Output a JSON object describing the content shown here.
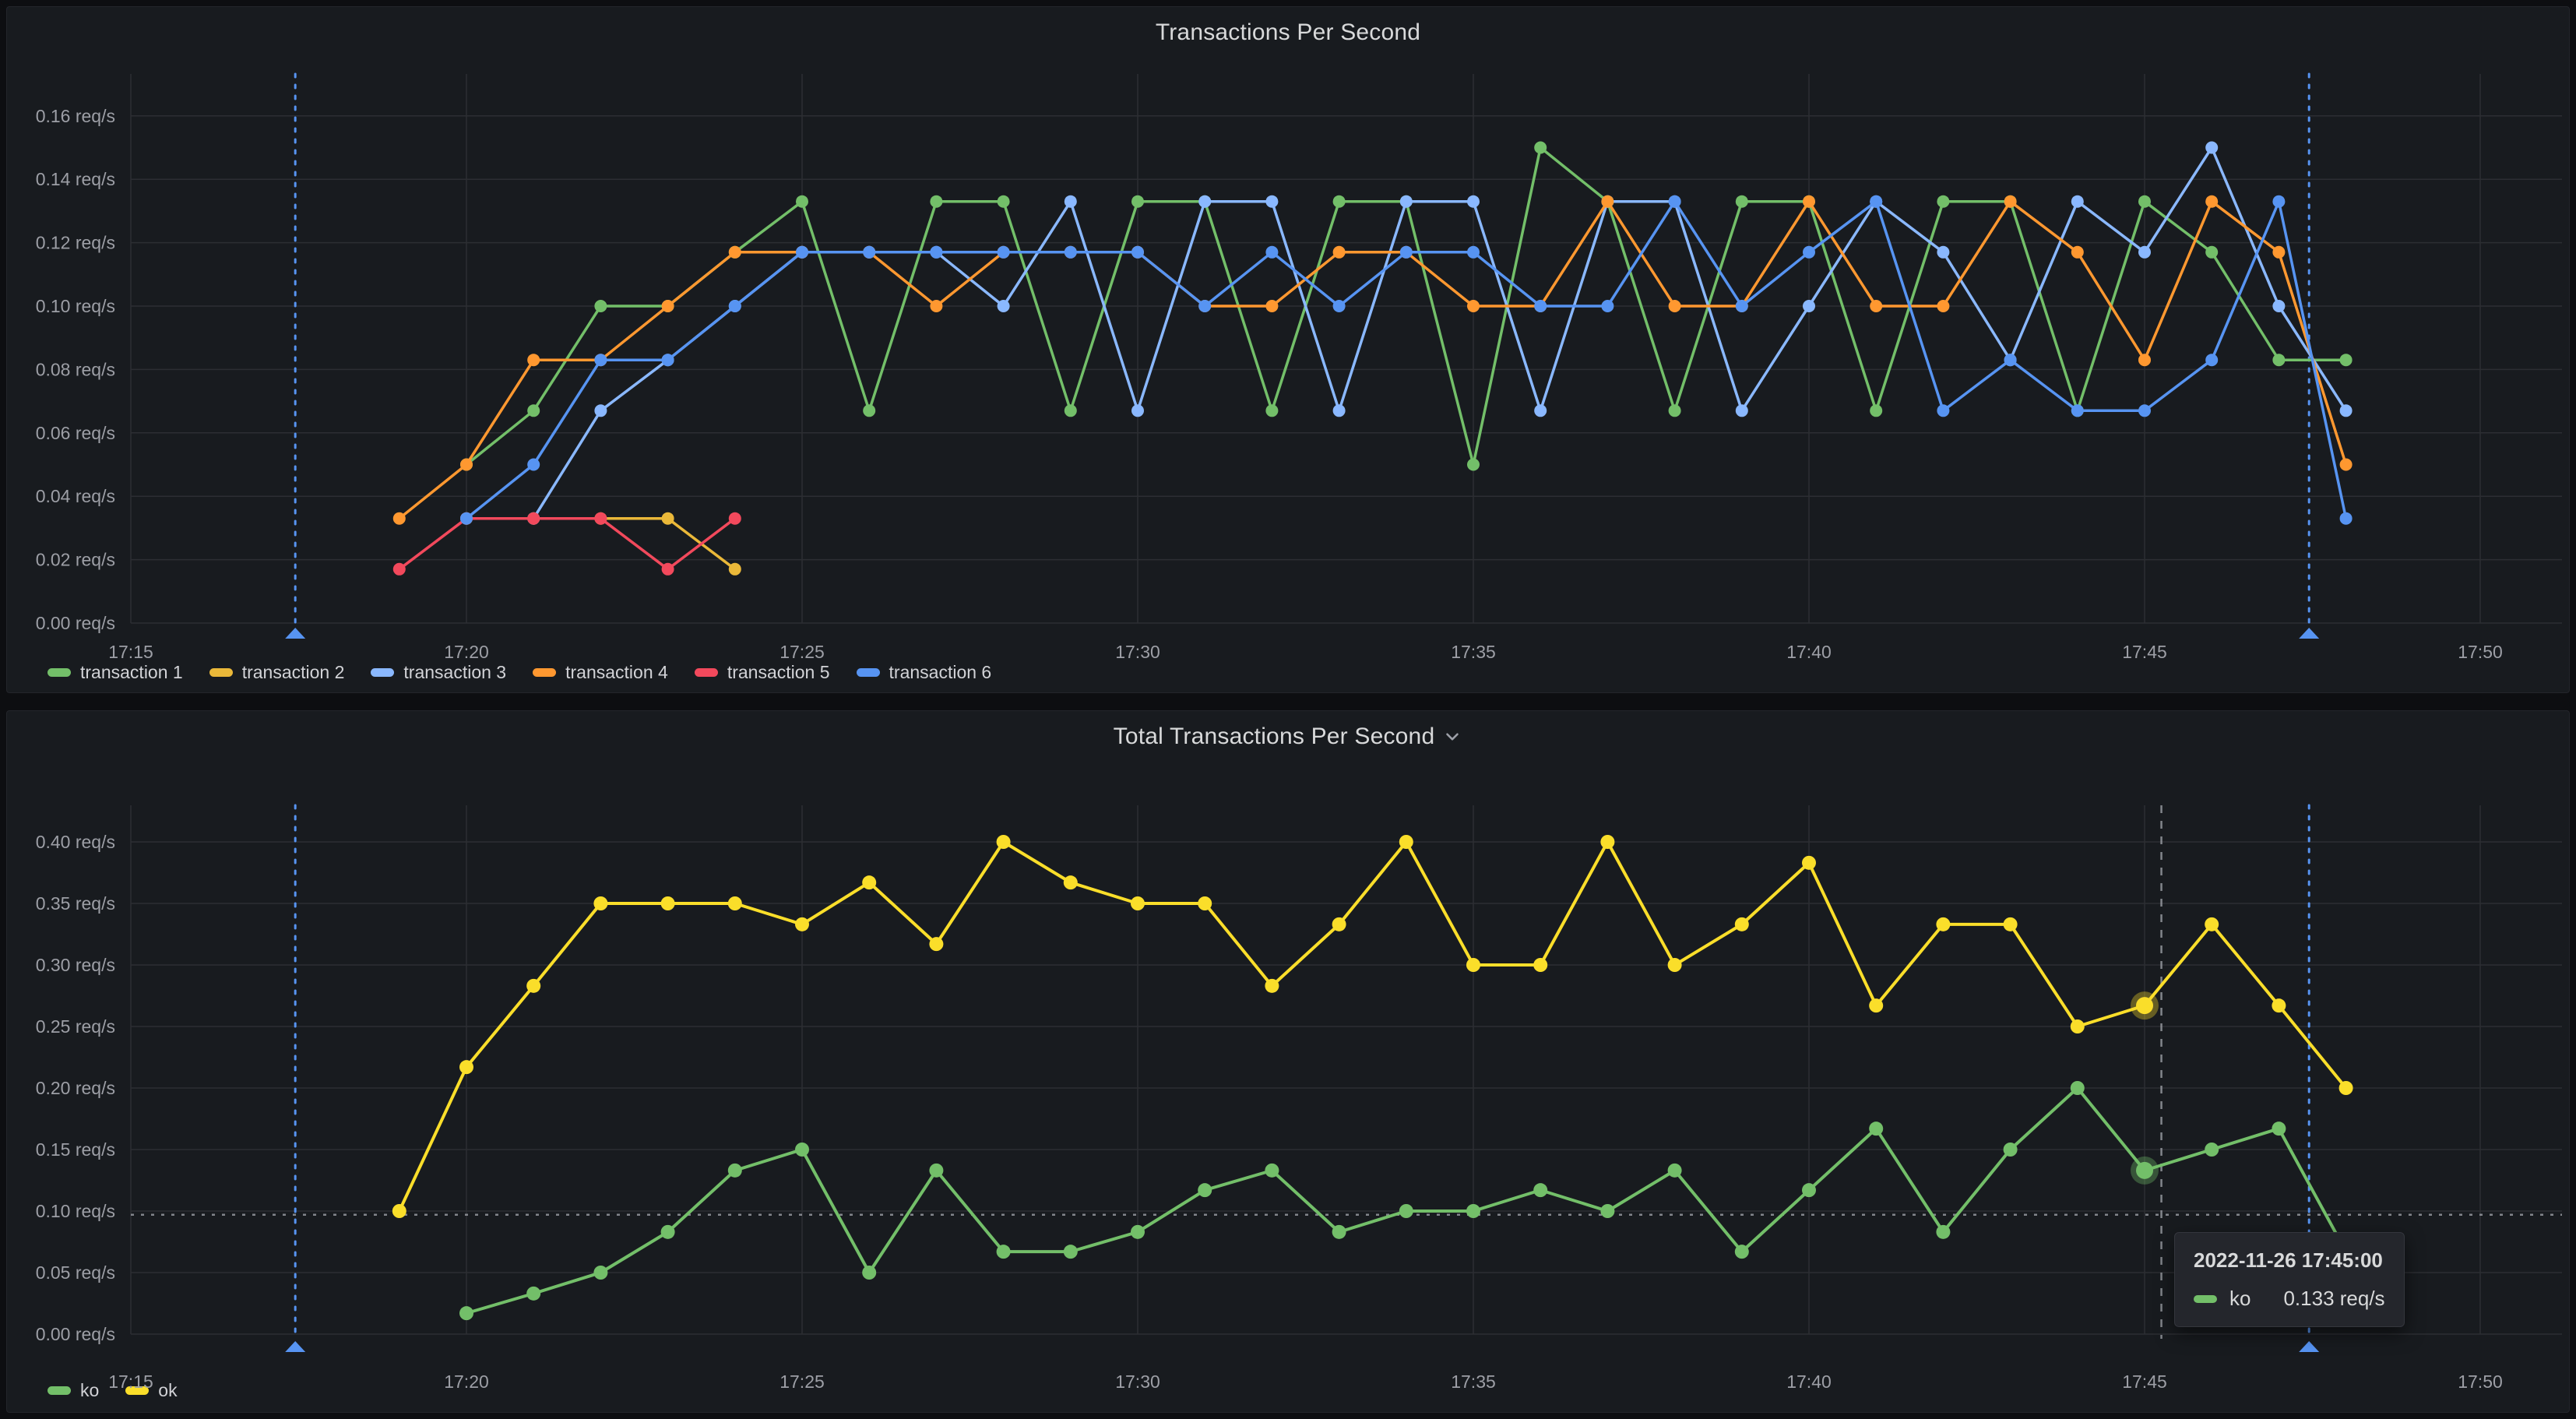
{
  "panels": [
    {
      "title": "Transactions Per Second",
      "has_menu_chevron": false
    },
    {
      "title": "Total Transactions Per Second",
      "has_menu_chevron": true
    }
  ],
  "tooltip": {
    "title": "2022-11-26 17:45:00",
    "rows": [
      {
        "series": "ko",
        "color": "#73bf69",
        "value": "0.133 req/s"
      }
    ]
  },
  "colors": {
    "page_bg": "#0d0e11",
    "panel_bg": "#181b1f",
    "grid": "#2c2e33",
    "axis_text": "#9d9fa6",
    "annotation": "#5794f2",
    "crosshair": "#a6a9b0"
  },
  "chart_data": [
    {
      "type": "line",
      "title": "Transactions Per Second",
      "x_axis": {
        "tick_labels": [
          "17:15",
          "17:20",
          "17:25",
          "17:30",
          "17:35",
          "17:40",
          "17:45",
          "17:50"
        ],
        "tick_minutes": [
          0,
          5,
          10,
          15,
          20,
          25,
          30,
          35
        ],
        "start_time": "17:15",
        "minutes_per_point": 1
      },
      "y_axis": {
        "tick_values": [
          0,
          0.02,
          0.04,
          0.06,
          0.08,
          0.1,
          0.12,
          0.14,
          0.16
        ],
        "tick_labels": [
          "0.00 req/s",
          "0.02 req/s",
          "0.04 req/s",
          "0.06 req/s",
          "0.08 req/s",
          "0.10 req/s",
          "0.12 req/s",
          "0.14 req/s",
          "0.16 req/s"
        ],
        "ylim": [
          0,
          0.168
        ]
      },
      "legend_position": "bottom",
      "annotations": {
        "color": "#5794f2",
        "times_min": [
          2.45,
          32.45
        ]
      },
      "series": [
        {
          "name": "transaction 1",
          "color": "#73bf69",
          "start_min": 5,
          "values": [
            0.05,
            0.067,
            0.1,
            0.1,
            0.117,
            0.133,
            0.067,
            0.133,
            0.133,
            0.067,
            0.133,
            0.133,
            0.067,
            0.133,
            0.133,
            0.05,
            0.15,
            0.133,
            0.067,
            0.133,
            0.133,
            0.067,
            0.133,
            0.133,
            0.067,
            0.133,
            0.117,
            0.083,
            0.083
          ]
        },
        {
          "name": "transaction 2",
          "color": "#eab839",
          "start_min": 5,
          "values": [
            0.033,
            0.033,
            0.033,
            0.033,
            0.017
          ]
        },
        {
          "name": "transaction 3",
          "color": "#8ab8ff",
          "start_min": 6,
          "values": [
            0.033,
            0.067,
            0.083,
            0.1,
            0.117,
            0.117,
            0.117,
            0.1,
            0.133,
            0.067,
            0.133,
            0.133,
            0.067,
            0.133,
            0.133,
            0.067,
            0.133,
            0.133,
            0.067,
            0.1,
            0.133,
            0.117,
            0.083,
            0.133,
            0.117,
            0.15,
            0.1,
            0.067
          ]
        },
        {
          "name": "transaction 4",
          "color": "#ff9830",
          "start_min": 4,
          "values": [
            0.033,
            0.05,
            0.083,
            0.083,
            0.1,
            0.117,
            0.117,
            0.117,
            0.1,
            0.117,
            0.117,
            0.117,
            0.1,
            0.1,
            0.117,
            0.117,
            0.1,
            0.1,
            0.133,
            0.1,
            0.1,
            0.133,
            0.1,
            0.1,
            0.133,
            0.117,
            0.083,
            0.133,
            0.117,
            0.05
          ]
        },
        {
          "name": "transaction 5",
          "color": "#f2495c",
          "start_min": 4,
          "values": [
            0.017,
            0.033,
            0.033,
            0.033,
            0.017,
            0.033
          ]
        },
        {
          "name": "transaction 6",
          "color": "#5794f2",
          "start_min": 5,
          "values": [
            0.033,
            0.05,
            0.083,
            0.083,
            0.1,
            0.117,
            0.117,
            0.117,
            0.117,
            0.117,
            0.117,
            0.1,
            0.117,
            0.1,
            0.117,
            0.117,
            0.1,
            0.1,
            0.133,
            0.1,
            0.117,
            0.133,
            0.067,
            0.083,
            0.067,
            0.067,
            0.083,
            0.133,
            0.033
          ]
        }
      ]
    },
    {
      "type": "line",
      "title": "Total Transactions Per Second",
      "x_axis": {
        "tick_labels": [
          "17:15",
          "17:20",
          "17:25",
          "17:30",
          "17:35",
          "17:40",
          "17:45",
          "17:50"
        ],
        "tick_minutes": [
          0,
          5,
          10,
          15,
          20,
          25,
          30,
          35
        ],
        "start_time": "17:15",
        "minutes_per_point": 1
      },
      "y_axis": {
        "tick_values": [
          0,
          0.05,
          0.1,
          0.15,
          0.2,
          0.25,
          0.3,
          0.35,
          0.4
        ],
        "tick_labels": [
          "0.00 req/s",
          "0.05 req/s",
          "0.10 req/s",
          "0.15 req/s",
          "0.20 req/s",
          "0.25 req/s",
          "0.30 req/s",
          "0.35 req/s",
          "0.40 req/s"
        ],
        "ylim": [
          0,
          0.42
        ]
      },
      "legend_position": "bottom",
      "annotations": {
        "color": "#5794f2",
        "times_min": [
          2.45,
          32.45
        ]
      },
      "crosshair": {
        "time_min": 30.25,
        "value": 0.097
      },
      "highlight": {
        "time_min": 30,
        "series": [
          "ko",
          "ok"
        ]
      },
      "series": [
        {
          "name": "ko",
          "color": "#73bf69",
          "start_min": 5,
          "values": [
            0.017,
            0.033,
            0.05,
            0.083,
            0.133,
            0.15,
            0.05,
            0.133,
            0.067,
            0.067,
            0.083,
            0.117,
            0.133,
            0.083,
            0.1,
            0.1,
            0.117,
            0.1,
            0.133,
            0.067,
            0.117,
            0.167,
            0.083,
            0.15,
            0.2,
            0.133,
            0.15,
            0.167,
            0.067
          ]
        },
        {
          "name": "ok",
          "color": "#fade2a",
          "start_min": 4,
          "values": [
            0.1,
            0.217,
            0.283,
            0.35,
            0.35,
            0.35,
            0.333,
            0.367,
            0.317,
            0.4,
            0.367,
            0.35,
            0.35,
            0.283,
            0.333,
            0.4,
            0.3,
            0.3,
            0.4,
            0.3,
            0.333,
            0.383,
            0.267,
            0.333,
            0.333,
            0.25,
            0.267,
            0.333,
            0.267,
            0.2
          ]
        }
      ]
    }
  ]
}
